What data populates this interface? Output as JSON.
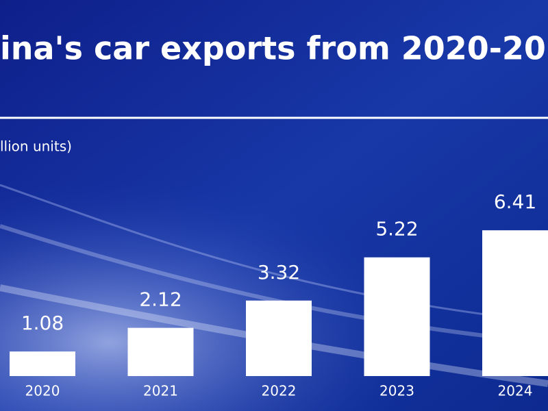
{
  "chart_data": {
    "type": "bar",
    "title": "ina's car exports from 2020-20",
    "y_label": "llion units)",
    "categories": [
      "2020",
      "2021",
      "2022",
      "2023",
      "2024"
    ],
    "values": [
      1.08,
      2.12,
      3.32,
      5.22,
      6.41
    ],
    "color": "#ffffff"
  }
}
